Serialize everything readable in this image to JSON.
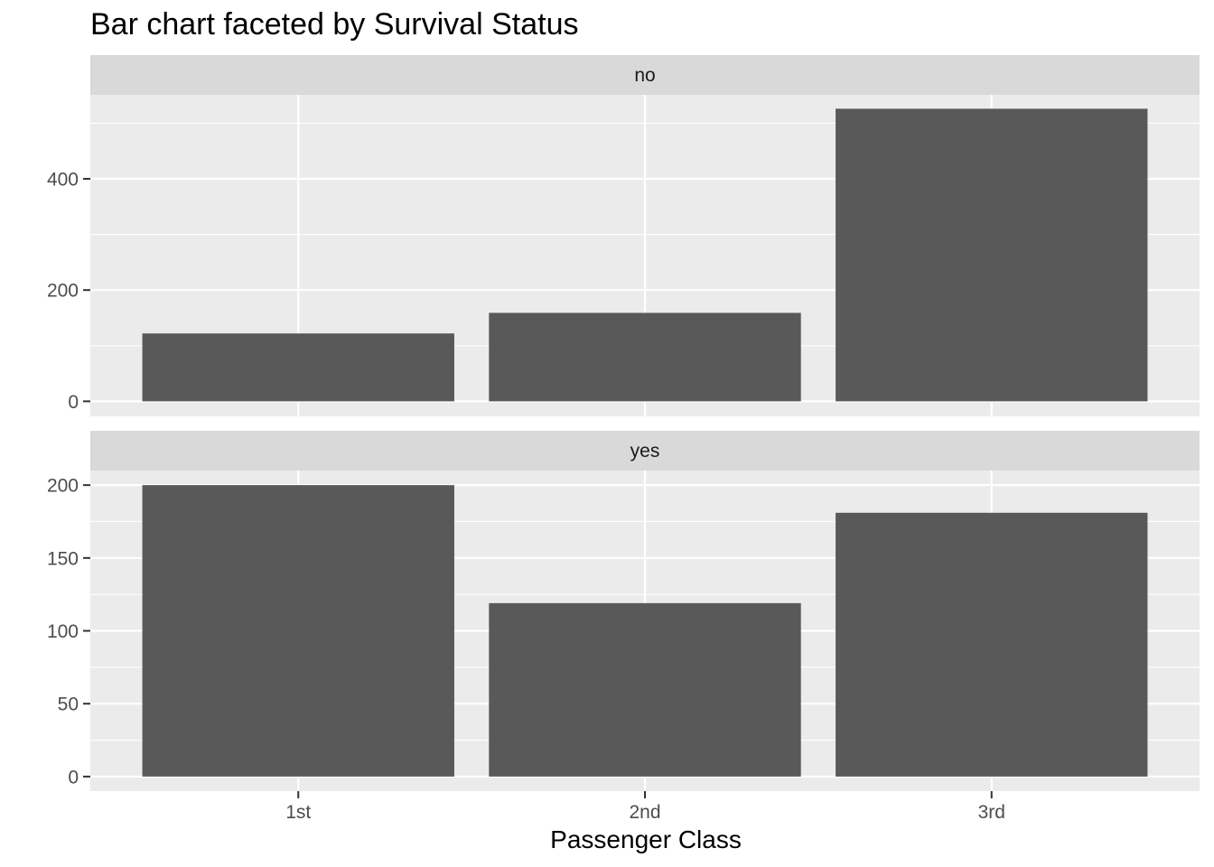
{
  "chart_data": {
    "type": "bar",
    "title": "Bar chart faceted by Survival Status",
    "xlabel": "Passenger Class",
    "ylabel": "",
    "categories": [
      "1st",
      "2nd",
      "3rd"
    ],
    "bar_color": "#595959",
    "panel_background": "#ebebeb",
    "strip_background": "#d9d9d9",
    "grid": true,
    "facets": [
      {
        "label": "no",
        "values": [
          122,
          159,
          526
        ],
        "ylim": [
          -27,
          551
        ],
        "yticks": [
          0,
          200,
          400
        ],
        "ylabels": [
          "0",
          "200",
          "400"
        ]
      },
      {
        "label": "yes",
        "values": [
          200,
          119,
          181
        ],
        "ylim": [
          -10,
          210
        ],
        "yticks": [
          0,
          50,
          100,
          150,
          200
        ],
        "ylabels": [
          "0",
          "50",
          "100",
          "150",
          "200"
        ]
      }
    ]
  }
}
